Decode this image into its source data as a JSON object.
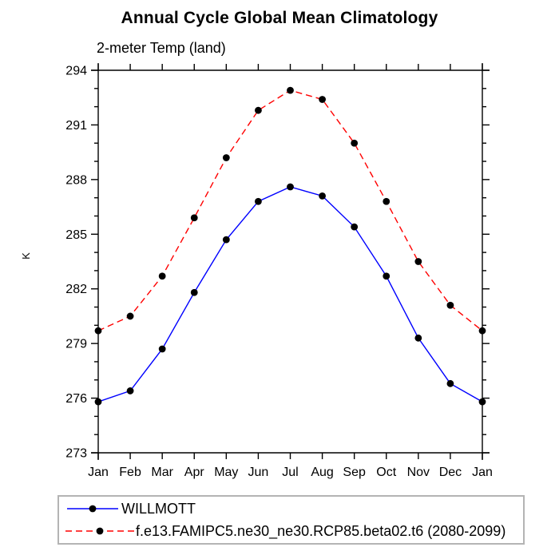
{
  "page": {
    "background": "#ffffff",
    "text_color": "#000000"
  },
  "chart_data": {
    "type": "line",
    "title": "Annual Cycle Global Mean Climatology",
    "subtitle": "2-meter Temp (land)",
    "ylabel": "K",
    "xlabel": "",
    "categories": [
      "Jan",
      "Feb",
      "Mar",
      "Apr",
      "May",
      "Jun",
      "Jul",
      "Aug",
      "Sep",
      "Oct",
      "Nov",
      "Dec",
      "Jan"
    ],
    "ylim": [
      273,
      294
    ],
    "ytick_major_step": 3,
    "ytick_minor_step": 1,
    "ytick_labels": [
      "273",
      "276",
      "279",
      "282",
      "285",
      "288",
      "291",
      "294"
    ],
    "grid": false,
    "ticks_direction": "out",
    "legend_position": "bottom-box",
    "axis_color": "#000000",
    "marker": "filled-circle",
    "marker_color": "#000000",
    "series": [
      {
        "name": "WILLMOTT",
        "color": "#0000ff",
        "line_style": "solid",
        "values": [
          275.8,
          276.4,
          278.7,
          281.8,
          284.7,
          286.8,
          287.6,
          287.1,
          285.4,
          282.7,
          279.3,
          276.8,
          275.8
        ]
      },
      {
        "name": "f.e13.FAMIPC5.ne30_ne30.RCP85.beta02.t6 (2080-2099)",
        "color": "#ff0000",
        "line_style": "dashed",
        "values": [
          279.7,
          280.5,
          282.7,
          285.9,
          289.2,
          291.8,
          292.9,
          292.4,
          290.0,
          286.8,
          283.5,
          281.1,
          279.7
        ]
      }
    ]
  }
}
